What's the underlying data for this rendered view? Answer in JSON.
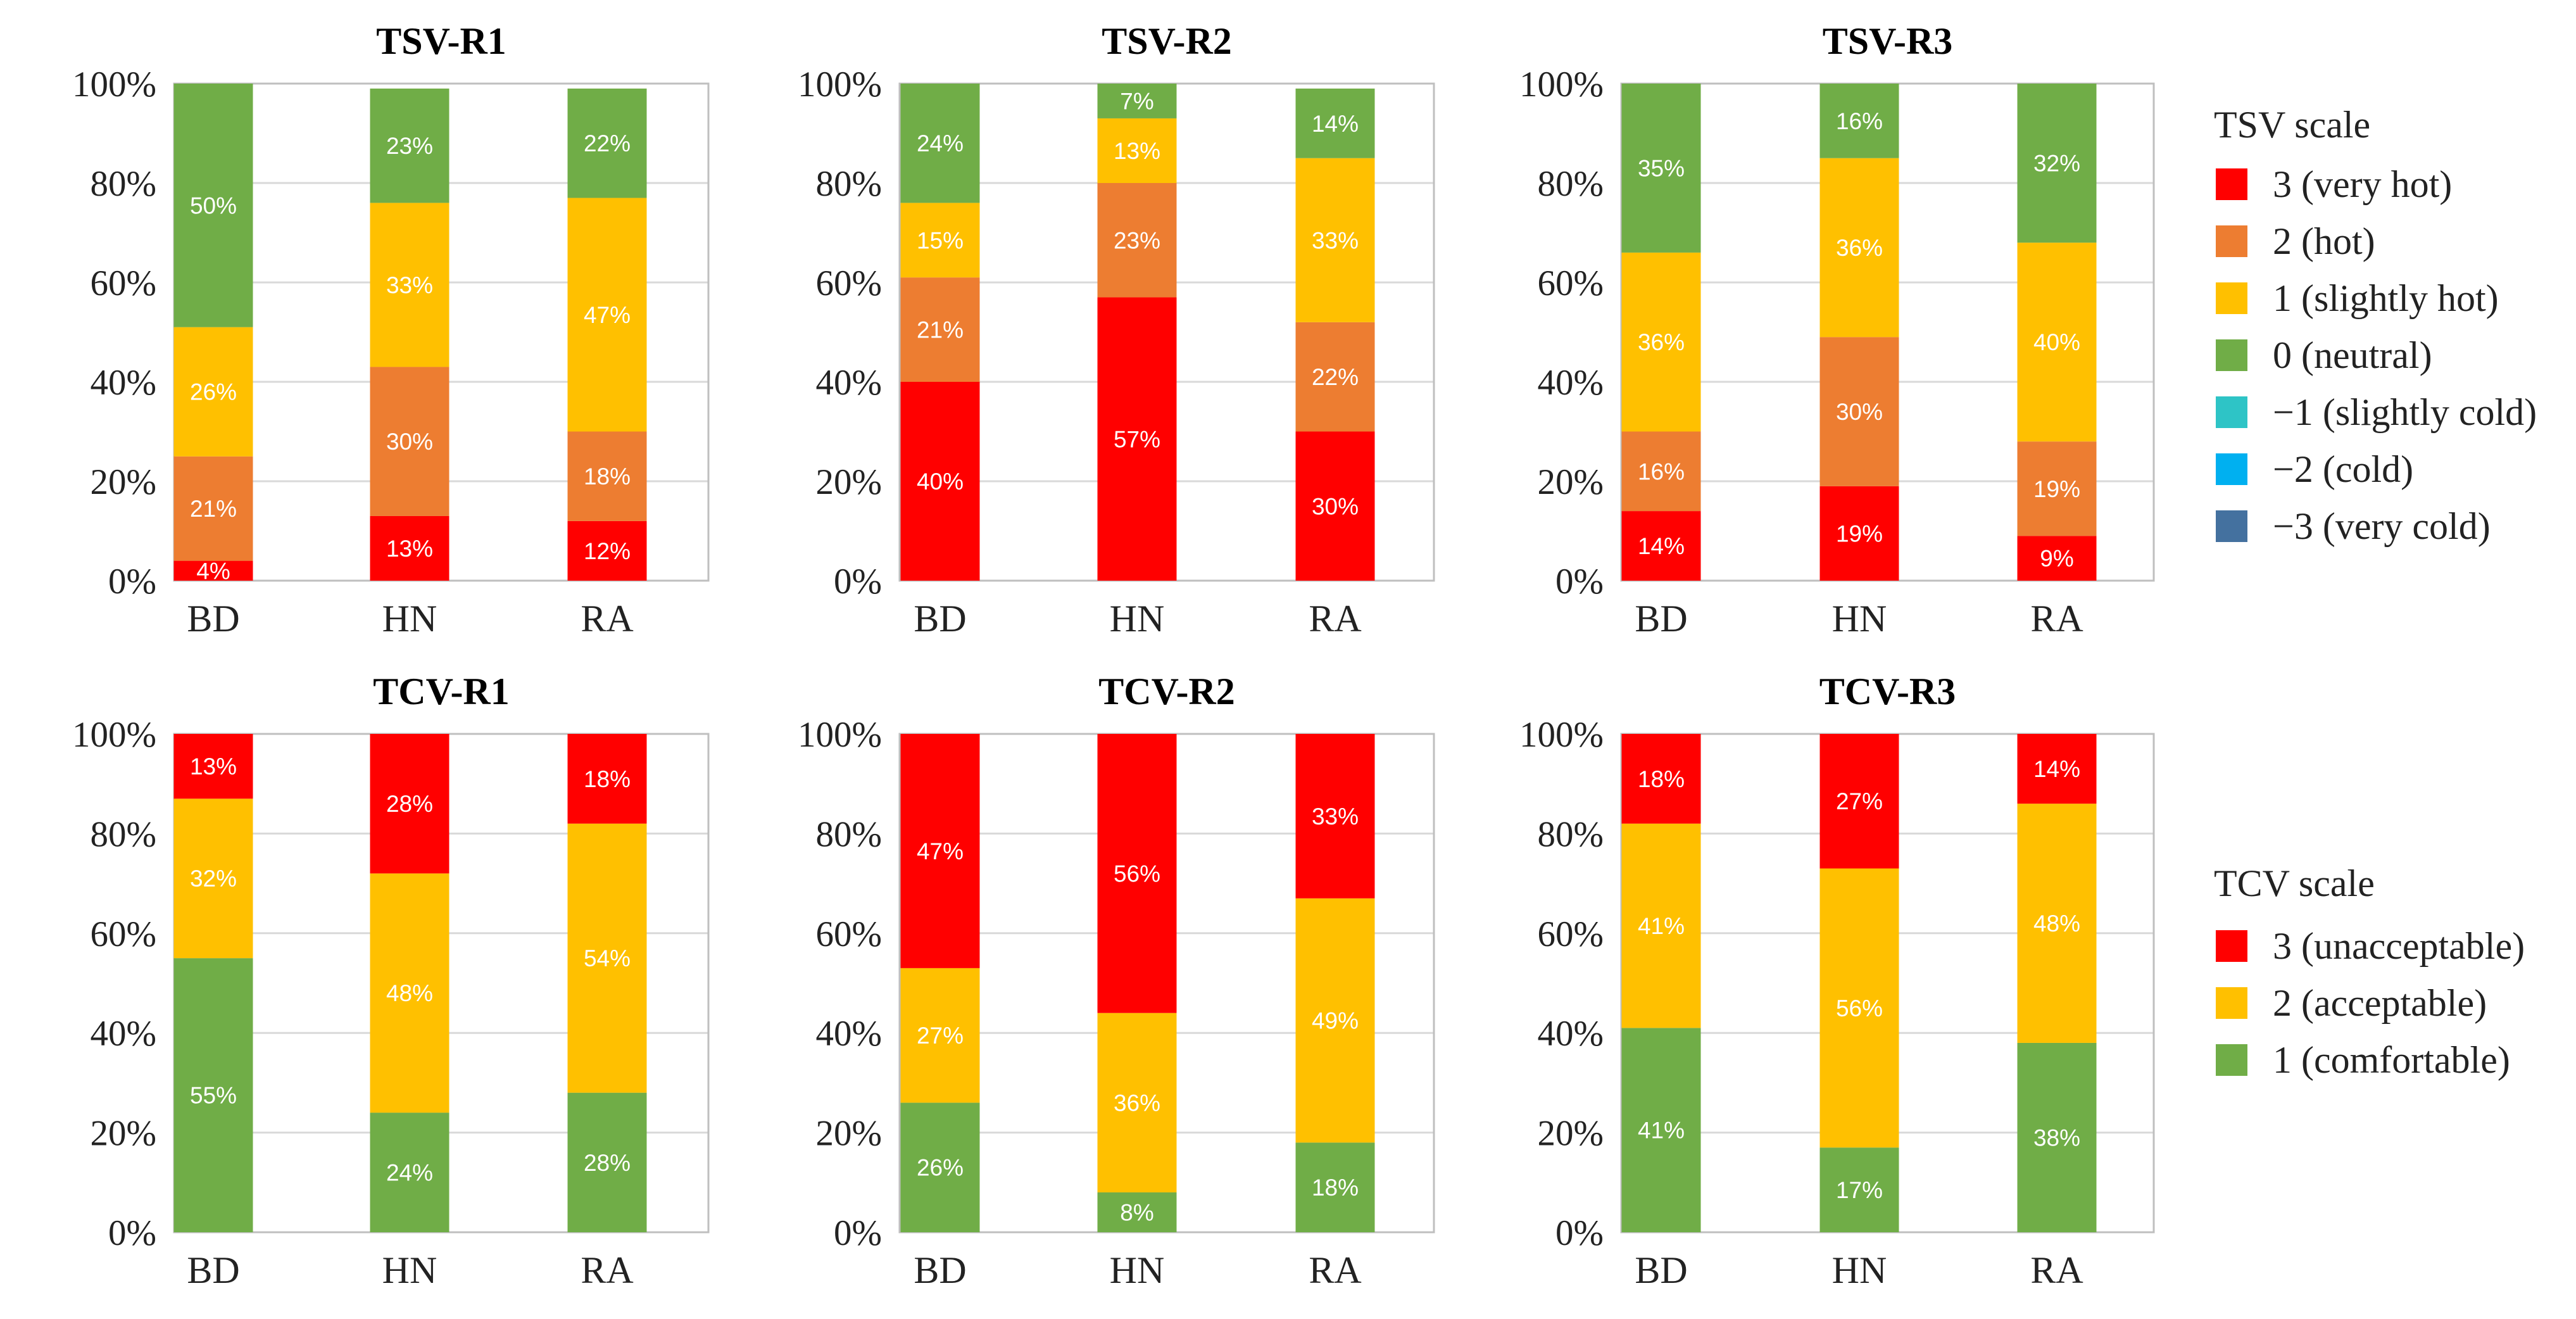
{
  "scales": {
    "tsv": {
      "title": "TSV scale",
      "levels": [
        {
          "id": "3",
          "label": "3 (very hot)",
          "color": "#FF0000"
        },
        {
          "id": "2",
          "label": "2 (hot)",
          "color": "#ED7D31"
        },
        {
          "id": "1",
          "label": "1 (slightly hot)",
          "color": "#FFC000"
        },
        {
          "id": "0",
          "label": "0 (neutral)",
          "color": "#70AD47"
        },
        {
          "id": "-1",
          "label": "−1 (slightly cold)",
          "color": "#2EC4C6"
        },
        {
          "id": "-2",
          "label": "−2 (cold)",
          "color": "#00B0F0"
        },
        {
          "id": "-3",
          "label": "−3 (very cold)",
          "color": "#44719F"
        }
      ]
    },
    "tcv": {
      "title": "TCV scale",
      "levels": [
        {
          "id": "3",
          "label": "3 (unacceptable)",
          "color": "#FF0000"
        },
        {
          "id": "2",
          "label": "2 (acceptable)",
          "color": "#FFC000"
        },
        {
          "id": "1",
          "label": "1 (comfortable)",
          "color": "#70AD47"
        }
      ]
    }
  },
  "chart_data": [
    {
      "type": "bar",
      "stacked": "percent",
      "title": "TSV-R1",
      "scale": "tsv",
      "categories": [
        "BD",
        "HN",
        "RA"
      ],
      "ylim": [
        0,
        100
      ],
      "yticks": [
        "0%",
        "20%",
        "40%",
        "60%",
        "80%",
        "100%"
      ],
      "grid": true,
      "series": [
        {
          "level": "3",
          "values": [
            4,
            13,
            12
          ],
          "labels": [
            "4%",
            "13%",
            "12%"
          ]
        },
        {
          "level": "2",
          "values": [
            21,
            30,
            18
          ],
          "labels": [
            "21%",
            "30%",
            "18%"
          ]
        },
        {
          "level": "1",
          "values": [
            26,
            33,
            47
          ],
          "labels": [
            "26%",
            "33%",
            "47%"
          ]
        },
        {
          "level": "0",
          "values": [
            50,
            23,
            22
          ],
          "labels": [
            "50%",
            "23%",
            "22%"
          ]
        }
      ]
    },
    {
      "type": "bar",
      "stacked": "percent",
      "title": "TSV-R2",
      "scale": "tsv",
      "categories": [
        "BD",
        "HN",
        "RA"
      ],
      "ylim": [
        0,
        100
      ],
      "yticks": [
        "0%",
        "20%",
        "40%",
        "60%",
        "80%",
        "100%"
      ],
      "grid": true,
      "series": [
        {
          "level": "3",
          "values": [
            40,
            57,
            30
          ],
          "labels": [
            "40%",
            "57%",
            "30%"
          ]
        },
        {
          "level": "2",
          "values": [
            21,
            23,
            22
          ],
          "labels": [
            "21%",
            "23%",
            "22%"
          ]
        },
        {
          "level": "1",
          "values": [
            15,
            13,
            33
          ],
          "labels": [
            "15%",
            "13%",
            "33%"
          ]
        },
        {
          "level": "0",
          "values": [
            24,
            7,
            14
          ],
          "labels": [
            "24%",
            "7%",
            "14%"
          ]
        }
      ]
    },
    {
      "type": "bar",
      "stacked": "percent",
      "title": "TSV-R3",
      "scale": "tsv",
      "categories": [
        "BD",
        "HN",
        "RA"
      ],
      "ylim": [
        0,
        100
      ],
      "yticks": [
        "0%",
        "20%",
        "40%",
        "60%",
        "80%",
        "100%"
      ],
      "grid": true,
      "series": [
        {
          "level": "3",
          "values": [
            14,
            19,
            9
          ],
          "labels": [
            "14%",
            "19%",
            "9%"
          ]
        },
        {
          "level": "2",
          "values": [
            16,
            30,
            19
          ],
          "labels": [
            "16%",
            "30%",
            "19%"
          ]
        },
        {
          "level": "1",
          "values": [
            36,
            36,
            40
          ],
          "labels": [
            "36%",
            "36%",
            "40%"
          ]
        },
        {
          "level": "0",
          "values": [
            35,
            16,
            32
          ],
          "labels": [
            "35%",
            "16%",
            "32%"
          ]
        }
      ]
    },
    {
      "type": "bar",
      "stacked": "percent",
      "title": "TCV-R1",
      "scale": "tcv",
      "categories": [
        "BD",
        "HN",
        "RA"
      ],
      "ylim": [
        0,
        100
      ],
      "yticks": [
        "0%",
        "20%",
        "40%",
        "60%",
        "80%",
        "100%"
      ],
      "grid": true,
      "series": [
        {
          "level": "1",
          "values": [
            55,
            24,
            28
          ],
          "labels": [
            "55%",
            "24%",
            "28%"
          ]
        },
        {
          "level": "2",
          "values": [
            32,
            48,
            54
          ],
          "labels": [
            "32%",
            "48%",
            "54%"
          ]
        },
        {
          "level": "3",
          "values": [
            13,
            28,
            18
          ],
          "labels": [
            "13%",
            "28%",
            "18%"
          ]
        }
      ]
    },
    {
      "type": "bar",
      "stacked": "percent",
      "title": "TCV-R2",
      "scale": "tcv",
      "categories": [
        "BD",
        "HN",
        "RA"
      ],
      "ylim": [
        0,
        100
      ],
      "yticks": [
        "0%",
        "20%",
        "40%",
        "60%",
        "80%",
        "100%"
      ],
      "grid": true,
      "series": [
        {
          "level": "1",
          "values": [
            26,
            8,
            18
          ],
          "labels": [
            "26%",
            "8%",
            "18%"
          ]
        },
        {
          "level": "2",
          "values": [
            27,
            36,
            49
          ],
          "labels": [
            "27%",
            "36%",
            "49%"
          ]
        },
        {
          "level": "3",
          "values": [
            47,
            56,
            33
          ],
          "labels": [
            "47%",
            "56%",
            "33%"
          ]
        }
      ]
    },
    {
      "type": "bar",
      "stacked": "percent",
      "title": "TCV-R3",
      "scale": "tcv",
      "categories": [
        "BD",
        "HN",
        "RA"
      ],
      "ylim": [
        0,
        100
      ],
      "yticks": [
        "0%",
        "20%",
        "40%",
        "60%",
        "80%",
        "100%"
      ],
      "grid": true,
      "series": [
        {
          "level": "1",
          "values": [
            41,
            17,
            38
          ],
          "labels": [
            "41%",
            "17%",
            "38%"
          ]
        },
        {
          "level": "2",
          "values": [
            41,
            56,
            48
          ],
          "labels": [
            "41%",
            "56%",
            "48%"
          ]
        },
        {
          "level": "3",
          "values": [
            18,
            27,
            14
          ],
          "labels": [
            "18%",
            "27%",
            "14%"
          ]
        }
      ]
    }
  ]
}
